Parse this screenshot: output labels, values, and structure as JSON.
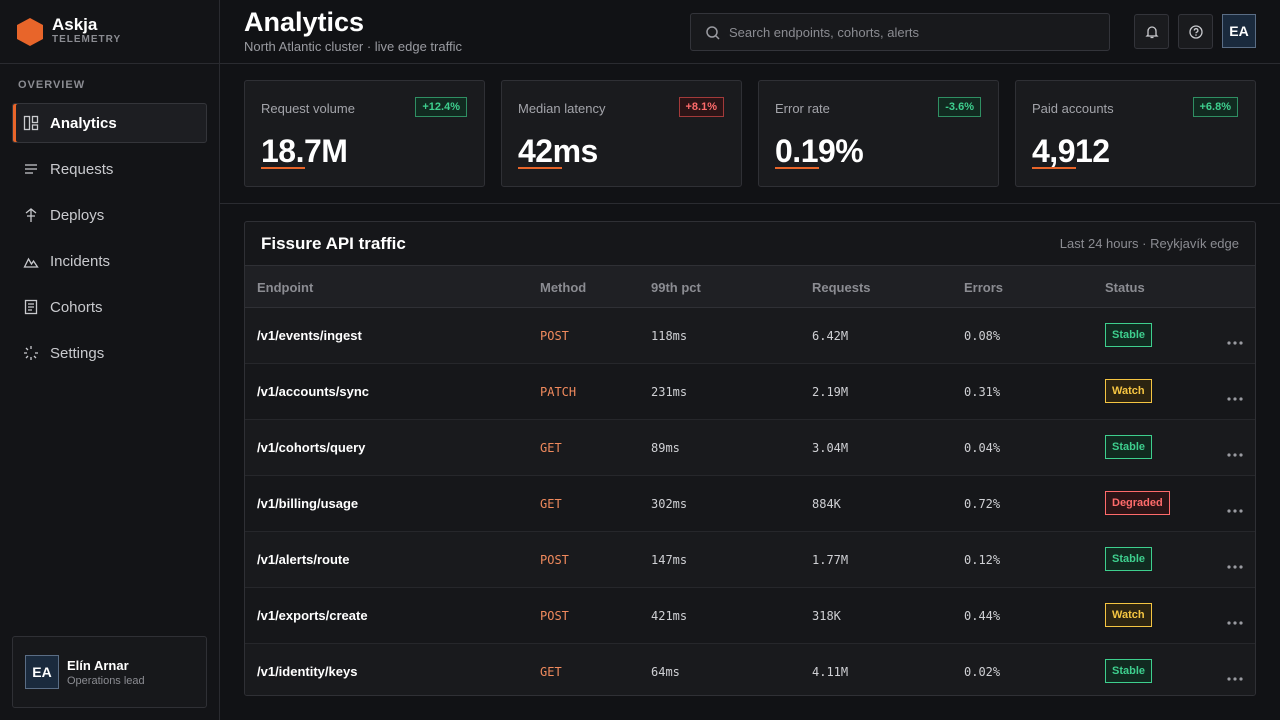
{
  "brand": {
    "name": "Askja",
    "tagline": "TELEMETRY"
  },
  "nav": {
    "section": "OVERVIEW",
    "active": 0,
    "items": [
      "Analytics",
      "Requests",
      "Deploys",
      "Incidents",
      "Cohorts",
      "Settings"
    ]
  },
  "user": {
    "initials": "EA",
    "name": "Elín Arnar",
    "role": "Operations lead"
  },
  "header": {
    "title": "Analytics",
    "subtitle": "North Atlantic cluster · live edge traffic",
    "search_placeholder": "Search endpoints, cohorts, alerts",
    "avatar": "EA"
  },
  "kpis": [
    {
      "label": "Request volume",
      "value": "18.7M",
      "delta": "+12.4%",
      "tone": "good"
    },
    {
      "label": "Median latency",
      "value": "42ms",
      "delta": "+8.1%",
      "tone": "bad"
    },
    {
      "label": "Error rate",
      "value": "0.19%",
      "delta": "-3.6%",
      "tone": "good"
    },
    {
      "label": "Paid accounts",
      "value": "4,912",
      "delta": "+6.8%",
      "tone": "good"
    }
  ],
  "table": {
    "title": "Fissure API traffic",
    "meta": "Last 24 hours · Reykjavík edge",
    "columns": [
      "Endpoint",
      "Method",
      "99th pct",
      "Requests",
      "Errors",
      "Status"
    ],
    "rows": [
      {
        "endpoint": "/v1/events/ingest",
        "method": "POST",
        "p99": "118ms",
        "requests": "6.42M",
        "errors": "0.08%",
        "status": "Stable",
        "tone": "ok"
      },
      {
        "endpoint": "/v1/accounts/sync",
        "method": "PATCH",
        "p99": "231ms",
        "requests": "2.19M",
        "errors": "0.31%",
        "status": "Watch",
        "tone": "warn"
      },
      {
        "endpoint": "/v1/cohorts/query",
        "method": "GET",
        "p99": "89ms",
        "requests": "3.04M",
        "errors": "0.04%",
        "status": "Stable",
        "tone": "ok"
      },
      {
        "endpoint": "/v1/billing/usage",
        "method": "GET",
        "p99": "302ms",
        "requests": "884K",
        "errors": "0.72%",
        "status": "Degraded",
        "tone": "bad"
      },
      {
        "endpoint": "/v1/alerts/route",
        "method": "POST",
        "p99": "147ms",
        "requests": "1.77M",
        "errors": "0.12%",
        "status": "Stable",
        "tone": "ok"
      },
      {
        "endpoint": "/v1/exports/create",
        "method": "POST",
        "p99": "421ms",
        "requests": "318K",
        "errors": "0.44%",
        "status": "Watch",
        "tone": "warn"
      },
      {
        "endpoint": "/v1/identity/keys",
        "method": "GET",
        "p99": "64ms",
        "requests": "4.11M",
        "errors": "0.02%",
        "status": "Stable",
        "tone": "ok"
      }
    ]
  }
}
